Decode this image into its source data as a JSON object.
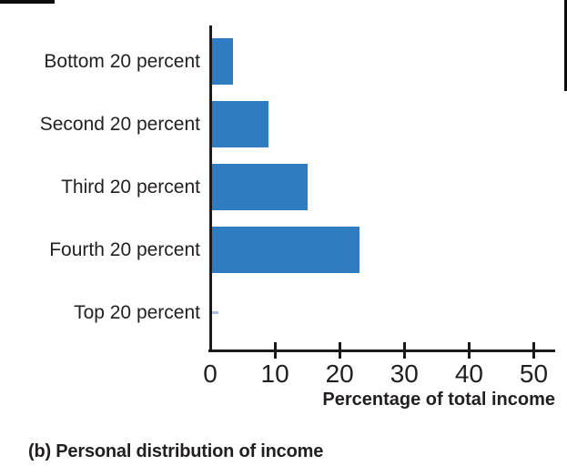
{
  "chart_data": {
    "type": "bar",
    "orientation": "horizontal",
    "title": "",
    "categories": [
      "Bottom 20 percent",
      "Second 20 percent",
      "Third 20 percent",
      "Fourth 20 percent",
      "Top 20 percent"
    ],
    "values": [
      3.5,
      9,
      15,
      23,
      0
    ],
    "xlabel": "Percentage of total income",
    "x_ticks": [
      0,
      10,
      20,
      30,
      40,
      50
    ],
    "x_tick_labels": [
      "0",
      "10",
      "20",
      "30",
      "40",
      "50"
    ],
    "xlim": [
      0,
      53
    ],
    "grid": false,
    "legend": false,
    "bar_color": "#2f7cc1",
    "zero_value_marker": {
      "category": "Top 20 percent",
      "value": 1.3,
      "color": "#a9c0e4"
    }
  },
  "caption": "(b) Personal distribution of income",
  "colors": {
    "text": "#231f20",
    "axis": "#1b1b1b",
    "background": "#ffffff"
  }
}
